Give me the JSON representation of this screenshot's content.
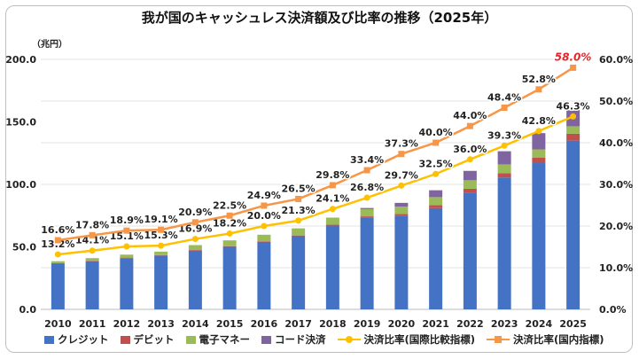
{
  "title": "我が国のキャッシュレス決済額及び比率の推移（2025年）",
  "left_axis_unit": "（兆円）",
  "chart_data": {
    "type": "bar",
    "title": "我が国のキャッシュレス決済額及び比率の推移（2025年）",
    "categories": [
      "2010",
      "2011",
      "2012",
      "2013",
      "2014",
      "2015",
      "2016",
      "2017",
      "2018",
      "2019",
      "2020",
      "2021",
      "2022",
      "2023",
      "2024",
      "2025"
    ],
    "left_axis": {
      "unit": "（兆円）",
      "ylim": [
        0,
        200
      ],
      "ticks": [
        "0.0",
        "50.0",
        "100.0",
        "150.0",
        "200.0"
      ]
    },
    "right_axis": {
      "ylim": [
        0,
        60
      ],
      "ticks": [
        "0.0%",
        "10.0%",
        "20.0%",
        "30.0%",
        "40.0%",
        "50.0%",
        "60.0%"
      ]
    },
    "grid": true,
    "legend_position": "bottom",
    "stacked_bars": [
      {
        "name": "クレジット",
        "color": "#4472c4",
        "values": [
          36.5,
          38.5,
          41.0,
          43.0,
          47.0,
          50.0,
          54.0,
          58.5,
          67.0,
          73.5,
          75.0,
          81.0,
          93.5,
          105.5,
          117.0,
          135.0
        ]
      },
      {
        "name": "デビット",
        "color": "#c0504d",
        "values": [
          0.4,
          0.4,
          0.4,
          0.4,
          0.5,
          0.5,
          0.5,
          0.6,
          0.7,
          0.9,
          1.2,
          2.3,
          3.0,
          3.5,
          4.5,
          5.5
        ]
      },
      {
        "name": "電子マネー",
        "color": "#9bbb59",
        "values": [
          1.6,
          2.1,
          2.4,
          2.8,
          3.9,
          4.7,
          5.2,
          5.7,
          5.5,
          5.8,
          6.0,
          6.5,
          6.8,
          7.0,
          6.5,
          6.0
        ]
      },
      {
        "name": "コード決済",
        "color": "#8064a2",
        "values": [
          0,
          0,
          0,
          0,
          0,
          0,
          0,
          0,
          0.2,
          0.9,
          3.0,
          5.5,
          7.5,
          10.5,
          13.0,
          16.0
        ]
      }
    ],
    "line_series": [
      {
        "name": "決済比率(国際比較指標)",
        "color": "#ffc000",
        "marker": "circle",
        "axis": "right",
        "values": [
          13.2,
          14.1,
          15.1,
          15.3,
          16.9,
          18.2,
          20.0,
          21.3,
          24.1,
          26.8,
          29.7,
          32.5,
          36.0,
          39.3,
          42.8,
          46.3
        ],
        "labels": [
          "13.2%",
          "14.1%",
          "15.1%",
          "15.3%",
          "16.9%",
          "18.2%",
          "20.0%",
          "21.3%",
          "24.1%",
          "26.8%",
          "29.7%",
          "32.5%",
          "36.0%",
          "39.3%",
          "42.8%",
          "46.3%"
        ]
      },
      {
        "name": "決済比率(国内指標)",
        "color": "#f79646",
        "marker": "square",
        "axis": "right",
        "values": [
          16.6,
          17.8,
          18.9,
          19.1,
          20.9,
          22.5,
          24.9,
          26.5,
          29.8,
          33.4,
          37.3,
          40.0,
          44.0,
          48.4,
          52.8,
          58.0
        ],
        "labels": [
          "16.6%",
          "17.8%",
          "18.9%",
          "19.1%",
          "20.9%",
          "22.5%",
          "24.9%",
          "26.5%",
          "29.8%",
          "33.4%",
          "37.3%",
          "40.0%",
          "44.0%",
          "48.4%",
          "52.8%",
          "58.0%"
        ]
      }
    ],
    "highlight": {
      "last_domestic_label_color": "#e8242b"
    }
  },
  "legend": [
    {
      "label": "クレジット",
      "kind": "bar",
      "color": "#4472c4"
    },
    {
      "label": "デビット",
      "kind": "bar",
      "color": "#c0504d"
    },
    {
      "label": "電子マネー",
      "kind": "bar",
      "color": "#9bbb59"
    },
    {
      "label": "コード決済",
      "kind": "bar",
      "color": "#8064a2"
    },
    {
      "label": "決済比率(国際比較指標)",
      "kind": "line-circle",
      "color": "#ffc000"
    },
    {
      "label": "決済比率(国内指標)",
      "kind": "line-square",
      "color": "#f79646"
    }
  ]
}
